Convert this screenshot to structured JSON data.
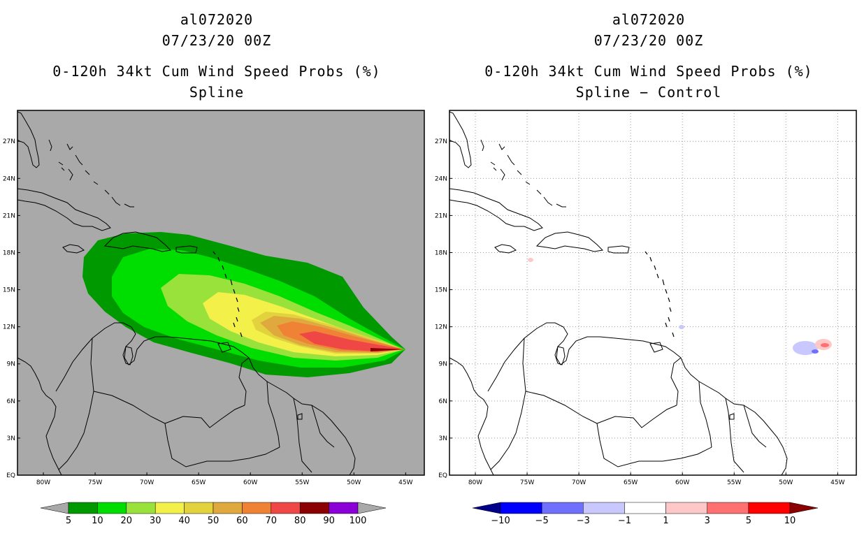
{
  "left_panel": {
    "storm_id": "al072020",
    "datetime": "07/23/20 00Z",
    "product": "0-120h 34kt Cum Wind Speed Probs (%)",
    "subtitle": "Spline"
  },
  "right_panel": {
    "storm_id": "al072020",
    "datetime": "07/23/20 00Z",
    "product": "0-120h 34kt Cum Wind Speed Probs (%)",
    "subtitle": "Spline − Control"
  },
  "lat_labels": [
    "EQ",
    "3N",
    "6N",
    "9N",
    "12N",
    "15N",
    "18N",
    "21N",
    "24N",
    "27N"
  ],
  "lon_labels": [
    "80W",
    "75W",
    "70W",
    "65W",
    "60W",
    "55W",
    "50W",
    "45W"
  ],
  "map_extent": {
    "lon_min": -82.5,
    "lon_max": -43.2,
    "lat_min": 0,
    "lat_max": 29.5
  },
  "left_colorbar": {
    "labels": [
      "5",
      "10",
      "20",
      "30",
      "40",
      "50",
      "60",
      "70",
      "80",
      "90",
      "100"
    ],
    "colors": [
      "#a9a9a9",
      "#009900",
      "#00dd00",
      "#99e23b",
      "#f3f04a",
      "#e1d23e",
      "#e0a93d",
      "#ef8235",
      "#ef4646",
      "#8b0000",
      "#8a00d6",
      "#a9a9a9"
    ]
  },
  "right_colorbar": {
    "labels": [
      "−10",
      "−5",
      "−3",
      "−1",
      "1",
      "3",
      "5",
      "10"
    ],
    "colors": [
      "#00008b",
      "#0000ff",
      "#7070ff",
      "#c8c8ff",
      "#ffffff",
      "#ffc8c8",
      "#ff7070",
      "#ff0000",
      "#8b0000"
    ]
  },
  "colors": {
    "ocean_gray": "#a9a9a9",
    "grid": "#999999"
  }
}
